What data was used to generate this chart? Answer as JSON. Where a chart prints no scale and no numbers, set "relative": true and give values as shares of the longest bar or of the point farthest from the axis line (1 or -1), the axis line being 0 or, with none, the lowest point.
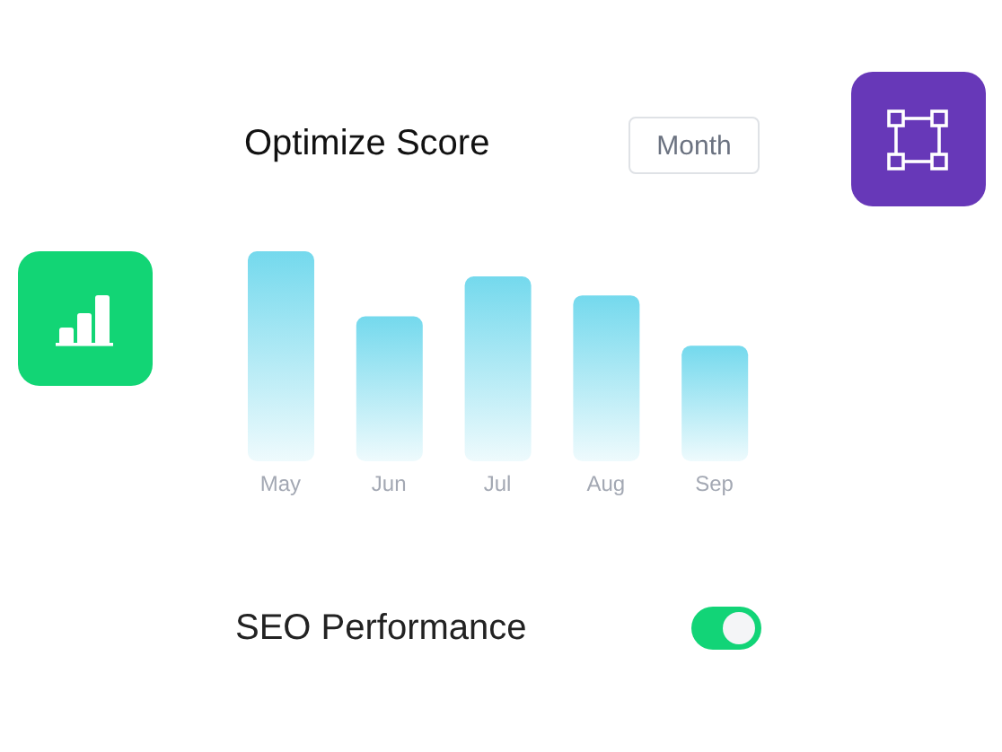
{
  "chart_data": {
    "type": "bar",
    "title": "Optimize Score",
    "categories": [
      "May",
      "Jun",
      "Jul",
      "Aug",
      "Sep"
    ],
    "values": [
      1,
      0.69,
      0.88,
      0.79,
      0.55
    ],
    "color": "#74d9ed",
    "relative": true,
    "annotations": [
      "Month",
      "SEO Performance"
    ]
  }
}
